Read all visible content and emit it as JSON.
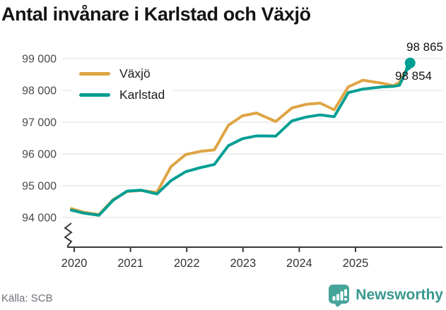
{
  "title": "Antal invånare i Karlstad och Växjö",
  "source": "Källa: SCB",
  "branding": {
    "name": "Newsworthy",
    "icon": "newsworthy-bars-bubble-icon",
    "text_color": "#38988E",
    "icon_color": "#45A49A"
  },
  "chart_data": {
    "type": "line",
    "title": "Antal invånare i Karlstad och Växjö",
    "unit": "invånare",
    "grid": true,
    "x_axis": {
      "type": "time",
      "ticks": [
        2020,
        2021,
        2022,
        2023,
        2024,
        2025
      ],
      "tick_labels": [
        "2020",
        "2021",
        "2022",
        "2023",
        "2024",
        "2025"
      ],
      "range": [
        2019.9,
        2026.0
      ]
    },
    "y_axis": {
      "ticks": [
        94000,
        95000,
        96000,
        97000,
        98000,
        99000
      ],
      "tick_labels": [
        "94 000",
        "95 000",
        "96 000",
        "97 000",
        "98 000",
        "99 000"
      ],
      "range": [
        94000,
        99000
      ],
      "axis_break": true
    },
    "legend": {
      "position": "top-left",
      "entries": [
        {
          "label": "Växjö",
          "color": "#DEA544"
        },
        {
          "label": "Karlstad",
          "color": "#009E93"
        }
      ]
    },
    "series": [
      {
        "name": "Växjö",
        "color": "#DEA544",
        "latest_value": 98854,
        "latest_label": "98 854",
        "marker_on_last": false,
        "points": [
          [
            2019.95,
            94280
          ],
          [
            2020.16,
            94170
          ],
          [
            2020.44,
            94090
          ],
          [
            2020.69,
            94560
          ],
          [
            2020.94,
            94820
          ],
          [
            2021.19,
            94850
          ],
          [
            2021.47,
            94790
          ],
          [
            2021.72,
            95600
          ],
          [
            2021.98,
            95980
          ],
          [
            2022.24,
            96080
          ],
          [
            2022.49,
            96130
          ],
          [
            2022.74,
            96900
          ],
          [
            2022.99,
            97200
          ],
          [
            2023.24,
            97290
          ],
          [
            2023.58,
            97020
          ],
          [
            2023.87,
            97450
          ],
          [
            2024.12,
            97560
          ],
          [
            2024.37,
            97600
          ],
          [
            2024.62,
            97390
          ],
          [
            2024.87,
            98110
          ],
          [
            2025.13,
            98320
          ],
          [
            2025.46,
            98230
          ],
          [
            2025.68,
            98150
          ],
          [
            2025.78,
            98260
          ],
          [
            2025.97,
            98854
          ]
        ]
      },
      {
        "name": "Karlstad",
        "color": "#009E93",
        "latest_value": 98865,
        "latest_label": "98 865",
        "marker_on_last": true,
        "points": [
          [
            2019.95,
            94230
          ],
          [
            2020.16,
            94140
          ],
          [
            2020.44,
            94070
          ],
          [
            2020.69,
            94540
          ],
          [
            2020.94,
            94830
          ],
          [
            2021.19,
            94860
          ],
          [
            2021.47,
            94740
          ],
          [
            2021.72,
            95160
          ],
          [
            2021.98,
            95440
          ],
          [
            2022.24,
            95570
          ],
          [
            2022.49,
            95670
          ],
          [
            2022.74,
            96260
          ],
          [
            2022.99,
            96480
          ],
          [
            2023.24,
            96570
          ],
          [
            2023.58,
            96560
          ],
          [
            2023.87,
            97040
          ],
          [
            2024.12,
            97160
          ],
          [
            2024.37,
            97230
          ],
          [
            2024.62,
            97170
          ],
          [
            2024.87,
            97930
          ],
          [
            2025.13,
            98040
          ],
          [
            2025.46,
            98110
          ],
          [
            2025.68,
            98130
          ],
          [
            2025.78,
            98160
          ],
          [
            2025.97,
            98865
          ]
        ]
      }
    ]
  }
}
